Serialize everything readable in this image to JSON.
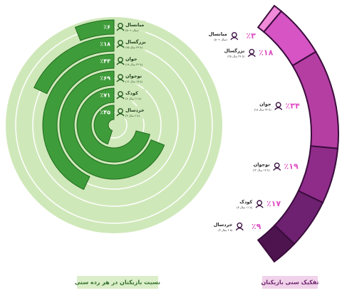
{
  "chart_data": [
    {
      "type": "radial_bar",
      "title": "نسبت بازیکنان در هر رده سنی",
      "categories": [
        "میانسال",
        "بزرگسال",
        "جوان",
        "نوجوان",
        "کودک",
        "خردسال"
      ],
      "age_ranges": [
        "(۵۰+ سال)",
        "(۲۵ تا ۴۹ سال)",
        "(۱۸ تا ۲۴ سال)",
        "(۱۲ تا ۱۷ سال)",
        "(۷ تا ۱۱ سال)",
        "(۳ تا ۶ سال)"
      ],
      "values": [
        6,
        18,
        43,
        69,
        71,
        45
      ],
      "value_labels": [
        "٪۶",
        "٪۱۸",
        "٪۴۳",
        "٪۶۹",
        "٪۷۱",
        "٪۴۵"
      ],
      "ylim": [
        0,
        100
      ],
      "color": "#3f9c3a",
      "background_color": "#cfe8b9"
    },
    {
      "type": "arc_pie",
      "title": "تفکیک سنی بازیکنان",
      "categories": [
        "میانسال",
        "بزرگسال",
        "جوان",
        "نوجوان",
        "کودک",
        "خردسال"
      ],
      "age_ranges": [
        "(۵۰+ سال)",
        "(۲۵ تا ۴۹ سال)",
        "(۱۸ تا ۲۴ سال)",
        "(۱۲ تا ۱۷ سال)",
        "(۷ تا ۱۱ سال)",
        "(۳ تا ۶ سال)"
      ],
      "values": [
        3,
        18,
        34,
        19,
        17,
        9
      ],
      "value_labels": [
        "٪۳",
        "٪۱۸",
        "٪۳۴",
        "٪۱۹",
        "٪۱۷",
        "٪۹"
      ],
      "colors": [
        "#f08ad9",
        "#d654c4",
        "#b53ea3",
        "#8f2c8a",
        "#6e2170",
        "#4d1450"
      ]
    }
  ]
}
